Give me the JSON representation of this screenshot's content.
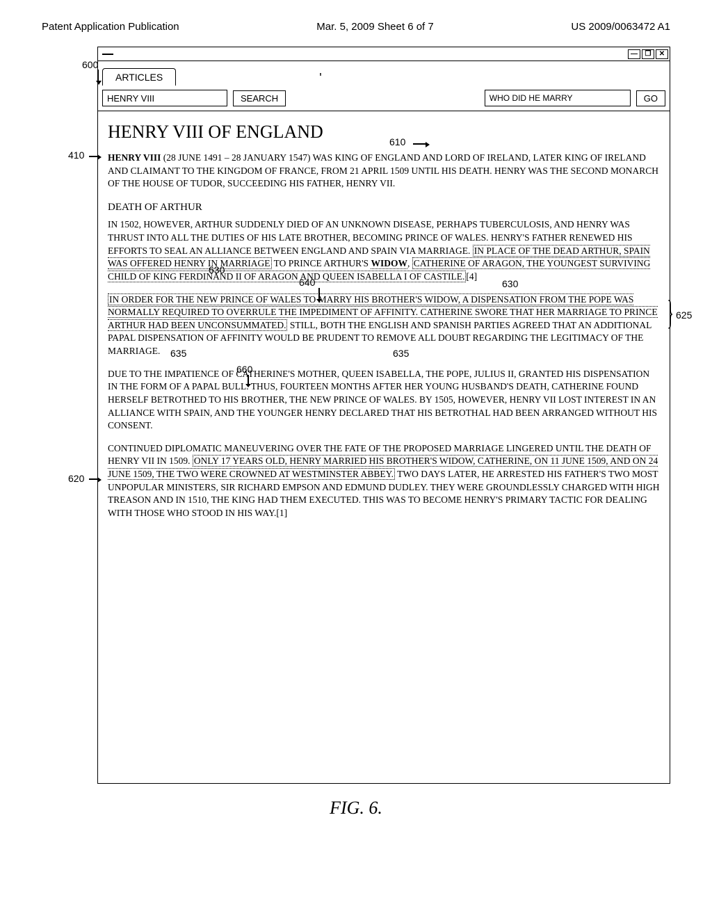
{
  "page_header": {
    "left": "Patent Application Publication",
    "center": "Mar. 5, 2009  Sheet 6 of 7",
    "right": "US 2009/0063472 A1"
  },
  "window": {
    "tab_label": "ARTICLES",
    "search_value": "HENRY VIII",
    "search_button": "SEARCH",
    "secondary_value": "WHO DID HE MARRY",
    "go_button": "GO",
    "win_min": "—",
    "win_max": "❐",
    "win_close": "✕"
  },
  "callouts": {
    "c600": "600",
    "c410": "410",
    "c610": "610",
    "c620": "620",
    "c625": "625",
    "c630": "630",
    "c640": "640",
    "c635": "635",
    "c660": "660"
  },
  "article": {
    "title": "HENRY VIII OF ENGLAND",
    "intro_bold": "HENRY VIII",
    "intro_rest": "   (28 JUNE 1491 – 28 JANUARY 1547) WAS KING OF ENGLAND AND LORD OF IRELAND, LATER KING OF IRELAND AND CLAIMANT TO THE KINGDOM OF FRANCE, FROM 21 APRIL 1509 UNTIL HIS DEATH. HENRY WAS THE SECOND MONARCH OF THE HOUSE OF TUDOR, SUCCEEDING HIS FATHER, HENRY VII.",
    "sub1": "DEATH OF ARTHUR",
    "p2_a": "IN 1502, HOWEVER, ARTHUR SUDDENLY DIED OF AN UNKNOWN DISEASE, PERHAPS TUBERCULOSIS, AND HENRY WAS THRUST INTO ALL THE DUTIES OF HIS LATE BROTHER, BECOMING PRINCE OF WALES. HENRY'S FATHER RENEWED HIS EFFORTS TO SEAL AN ALLIANCE BETWEEN ENGLAND AND SPAIN VIA MARRIAGE.",
    "p2_h1": "IN PLACE OF THE DEAD ARTHUR, SPAIN WAS OFFERED HENRY IN MARRIAGE",
    "p2_b": "TO PRINCE ARTHUR'S ",
    "p2_widow": "WIDOW",
    "p2_c": ", ",
    "p2_h2": "CATHERINE OF ARAGON, THE YOUNGEST SURVIVING CHILD OF KING FERDINAND II OF ARAGON AND QUEEN ISABELLA I OF CASTILE.",
    "p2_ref": "[4]",
    "p3_h1": "IN ORDER FOR THE NEW PRINCE OF WALES TO MARRY HIS BROTHER'S WIDOW, A DISPENSATION FROM THE POPE WAS NORMALLY REQUIRED TO OVERRULE THE IMPEDIMENT OF AFFINITY. CATHERINE SWORE THAT HER MARRIAGE TO PRINCE ARTHUR HAD BEEN UNCONSUMMATED.",
    "p3_b": " STILL, BOTH THE ENGLISH AND SPANISH PARTIES AGREED THAT AN ADDITIONAL PAPAL DISPENSATION OF AFFINITY WOULD BE PRUDENT TO REMOVE ALL DOUBT REGARDING THE LEGITIMACY OF THE MARRIAGE.",
    "p4": "DUE TO THE IMPATIENCE OF CATHERINE'S MOTHER, QUEEN ISABELLA, THE POPE, JULIUS II, GRANTED HIS DISPENSATION IN THE FORM OF A PAPAL BULL. THUS, FOURTEEN MONTHS AFTER HER YOUNG HUSBAND'S DEATH, CATHERINE FOUND HERSELF BETROTHED TO HIS BROTHER, THE NEW PRINCE OF WALES. BY 1505, HOWEVER, HENRY VII LOST INTEREST IN AN ALLIANCE WITH SPAIN, AND THE YOUNGER HENRY DECLARED THAT HIS BETROTHAL HAD BEEN ARRANGED WITHOUT HIS CONSENT.",
    "p5_a": "CONTINUED DIPLOMATIC MANEUVERING OVER THE FATE OF THE PROPOSED MARRIAGE LINGERED UNTIL THE DEATH OF HENRY VII IN 1509. ",
    "p5_h1": "ONLY 17 YEARS OLD, HENRY MARRIED HIS BROTHER'S WIDOW, CATHERINE, ON 11 JUNE 1509, AND ON 24 JUNE 1509, THE TWO WERE CROWNED AT WESTMINSTER ABBEY.",
    "p5_b": " TWO DAYS LATER, HE ARRESTED HIS FATHER'S TWO MOST UNPOPULAR MINISTERS, SIR RICHARD EMPSON AND EDMUND DUDLEY. THEY WERE GROUNDLESSLY CHARGED WITH HIGH TREASON AND IN 1510, THE KING HAD THEM EXECUTED. THIS WAS TO BECOME HENRY'S PRIMARY TACTIC FOR DEALING WITH THOSE WHO STOOD IN HIS WAY.[1]"
  },
  "figure_caption": "FIG. 6."
}
